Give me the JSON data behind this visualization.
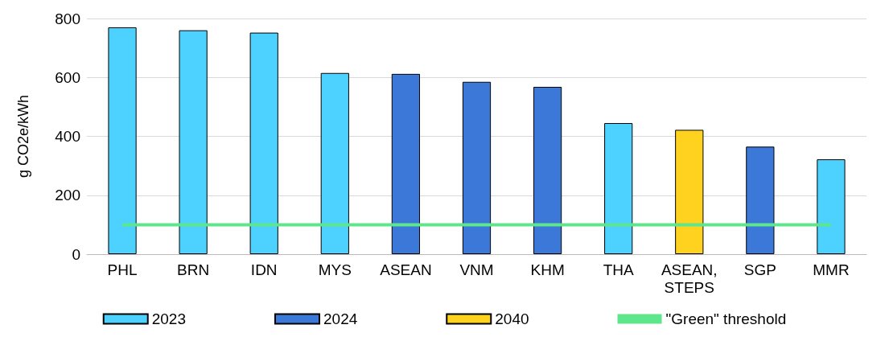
{
  "chart_data": {
    "type": "bar",
    "ylabel": "g CO2e/kWh",
    "categories": [
      "PHL",
      "BRN",
      "IDN",
      "MYS",
      "ASEAN",
      "VNM",
      "KHM",
      "THA",
      "ASEAN, STEPS",
      "SGP",
      "MMR"
    ],
    "series": [
      {
        "name": "2023",
        "color": "#4dd2ff",
        "values": [
          770,
          760,
          752,
          615,
          null,
          null,
          null,
          445,
          null,
          null,
          322
        ]
      },
      {
        "name": "2024",
        "color": "#3c78d8",
        "values": [
          null,
          null,
          null,
          null,
          612,
          585,
          568,
          null,
          null,
          365,
          null
        ]
      },
      {
        "name": "2040",
        "color": "#ffd21f",
        "values": [
          null,
          null,
          null,
          null,
          null,
          null,
          null,
          null,
          422,
          null,
          null
        ]
      },
      {
        "name": "\"Green\" threshold",
        "type": "line",
        "color": "#5ee68c",
        "values": [
          100,
          100,
          100,
          100,
          100,
          100,
          100,
          100,
          100,
          100,
          100
        ]
      }
    ],
    "ylim": [
      0,
      800
    ],
    "yticks": [
      0,
      200,
      400,
      600,
      800
    ],
    "grid": "y",
    "legend": "bottom"
  }
}
